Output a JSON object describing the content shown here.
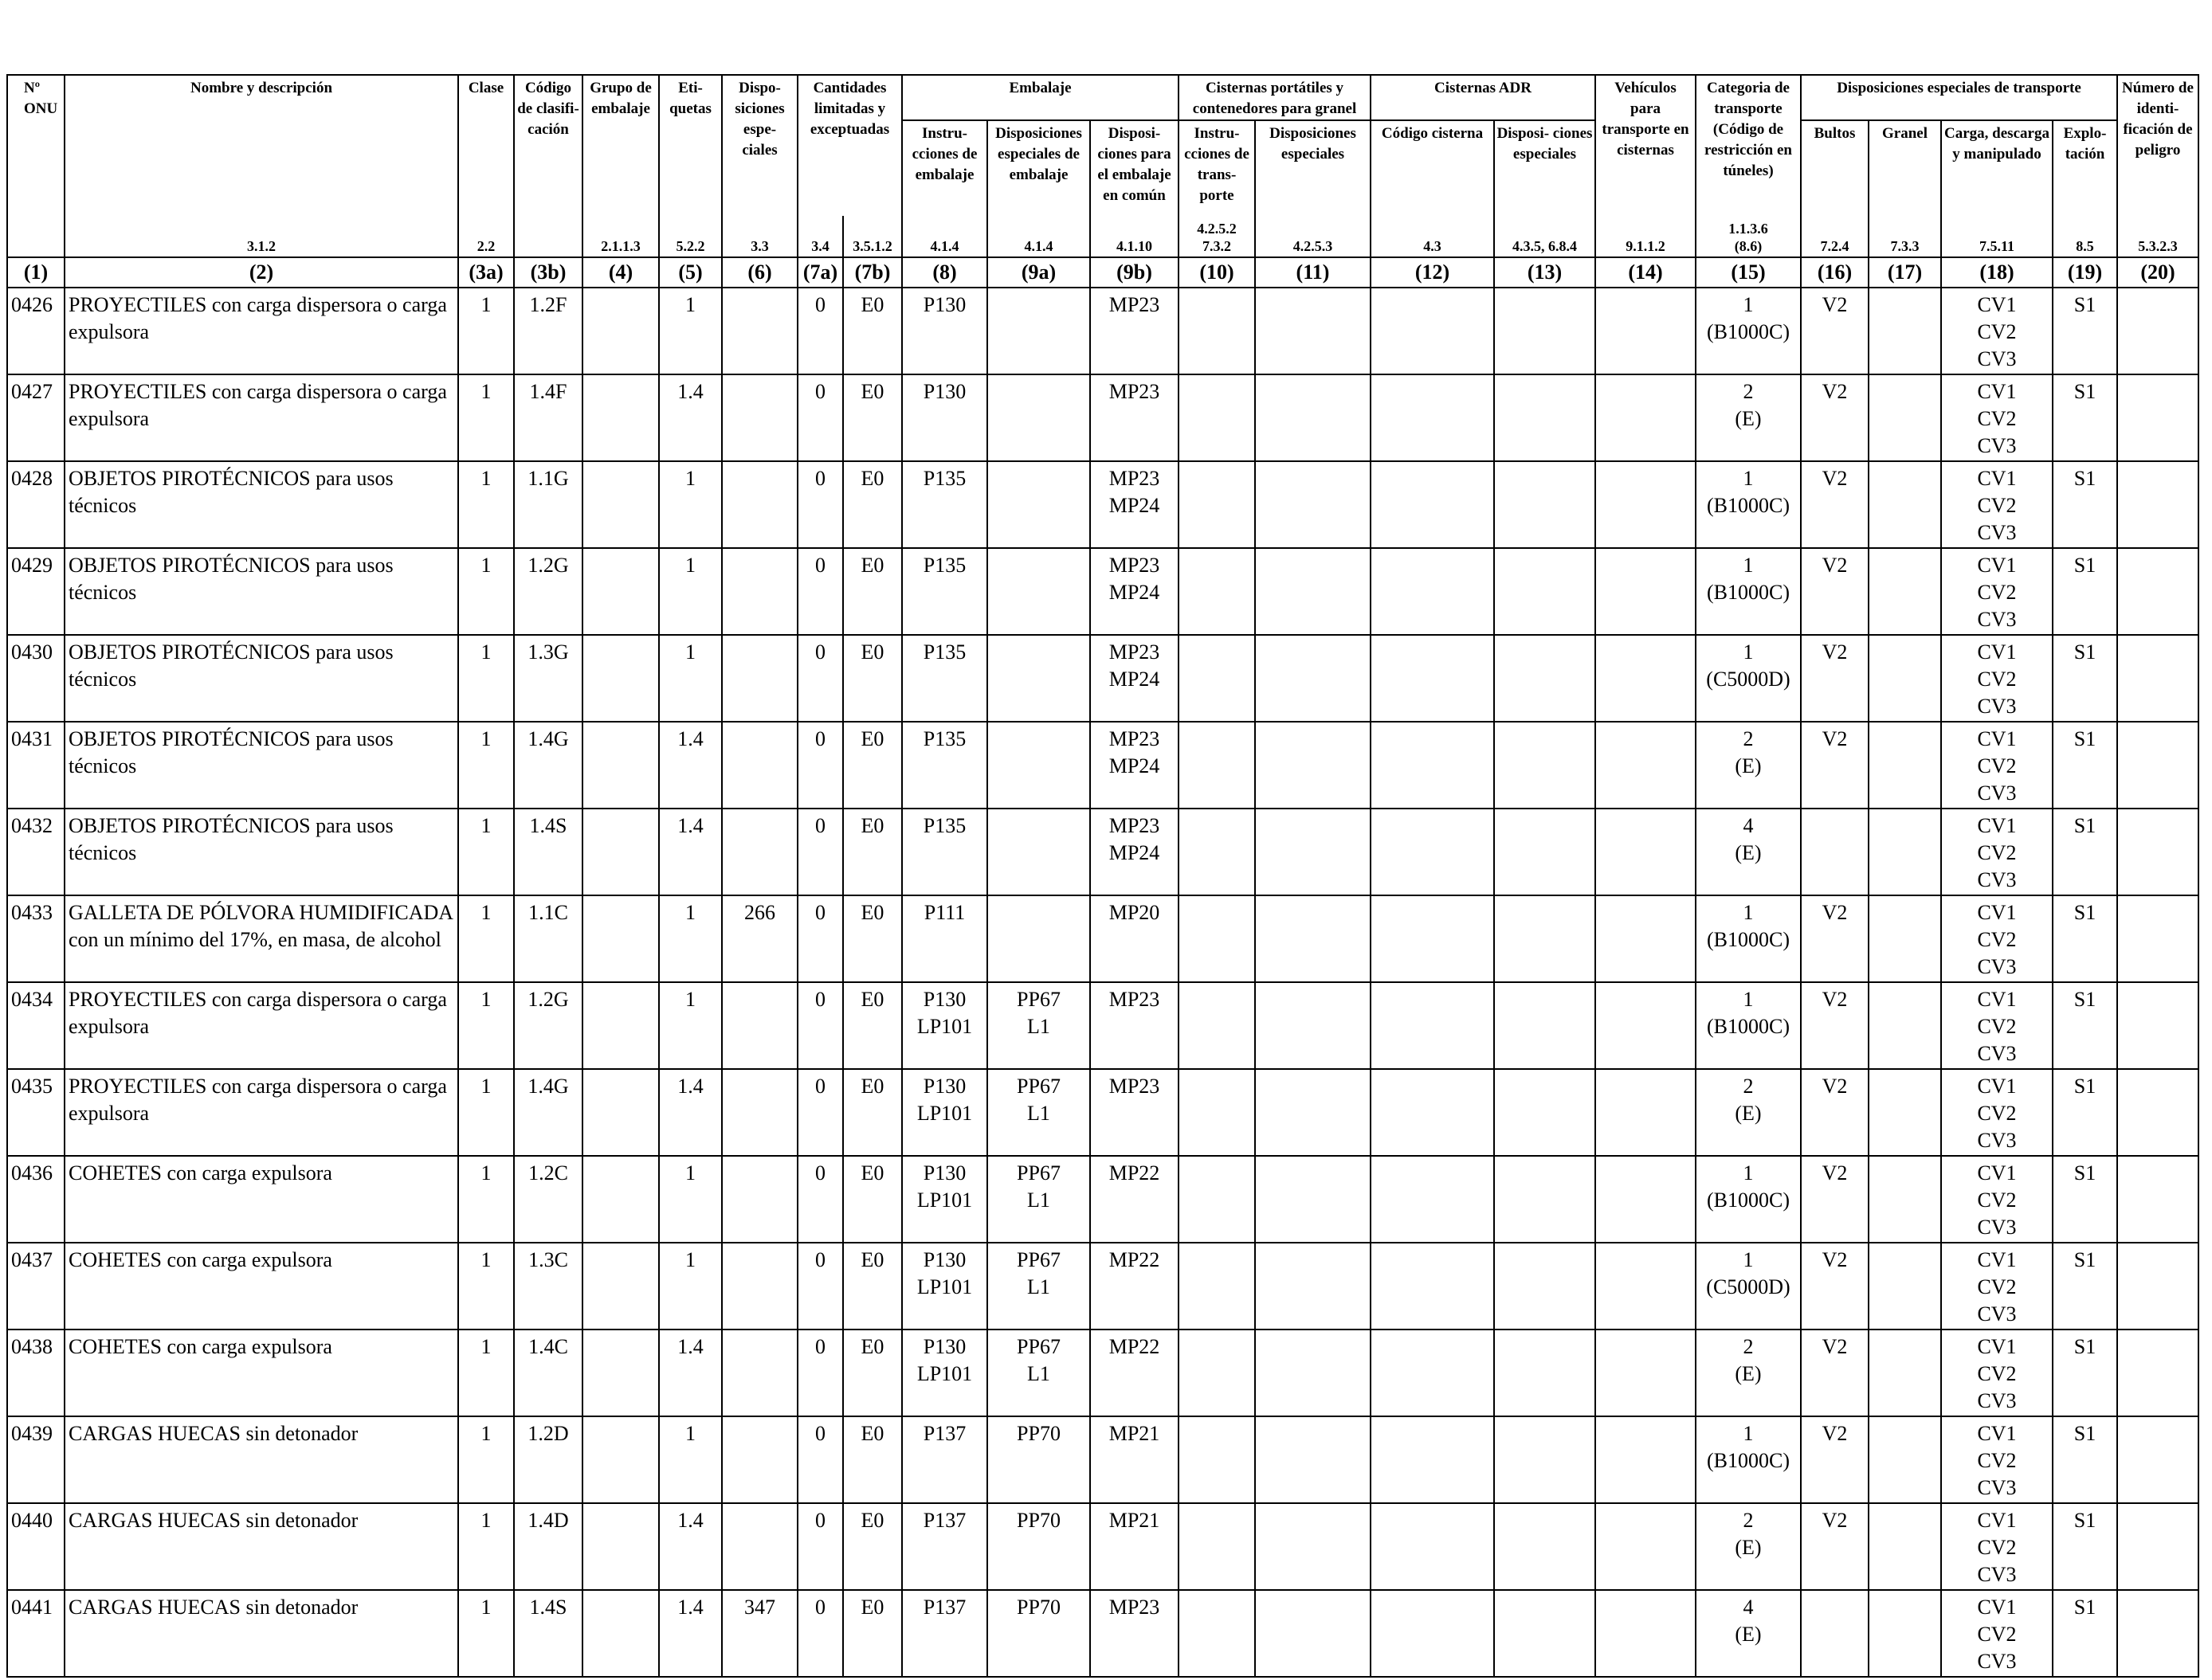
{
  "headers": {
    "onu": "Nº ONU",
    "nombre": "Nombre y descripción",
    "clase": "Clase",
    "codigo": "Código de clasifi- cación",
    "grupo": "Grupo de embalaje",
    "etiquetas": "Eti- quetas",
    "dispos": "Dispo- siciones espe- ciales",
    "cantidades": "Cantidades limitadas y exceptuadas",
    "embalaje": "Embalaje",
    "cisternas_port": "Cisternas portátiles y contenedores para granel",
    "cisternas_adr": "Cisternas ADR",
    "vehiculos": "Vehículos para transporte en cisternas",
    "categoria": "Categoria de transporte (Código de restricción en túneles)",
    "disp_transporte": "Disposiciones especiales de transporte",
    "numero_peligro": "Número de identi- ficación de peligro",
    "instrucciones_emb": "Instru- cciones de embalaje",
    "disp_emb": "Disposiciones especiales de embalaje",
    "disp_comun": "Disposi- ciones para el embalaje en común",
    "instr_transporte": "Instru- cciones de trans- porte",
    "disp_esp_cist": "Disposiciones especiales",
    "codigo_cisterna": "Código cisterna",
    "disp_esp_adr": "Disposi- ciones especiales",
    "bultos": "Bultos",
    "granel": "Granel",
    "carga": "Carga, descarga y manipulado",
    "explotacion": "Explo- tación"
  },
  "refs": {
    "nombre": "3.1.2",
    "clase": "2.2",
    "codigo": "",
    "grupo": "2.1.1.3",
    "etiquetas": "5.2.2",
    "dispos": "3.3",
    "c7a": "3.4",
    "c7b": "3.5.1.2",
    "c8": "4.1.4",
    "c9a": "4.1.4",
    "c9b": "4.1.10",
    "c10": "4.2.5.2\n7.3.2",
    "c11": "4.2.5.3",
    "c12": "4.3",
    "c13": "4.3.5, 6.8.4",
    "c14": "9.1.1.2",
    "c15": "1.1.3.6\n(8.6)",
    "c16": "7.2.4",
    "c17": "7.3.3",
    "c18": "7.5.11",
    "c19": "8.5",
    "c20": "5.3.2.3"
  },
  "col_numbers": [
    "(1)",
    "(2)",
    "(3a)",
    "(3b)",
    "(4)",
    "(5)",
    "(6)",
    "(7a)",
    "(7b)",
    "(8)",
    "(9a)",
    "(9b)",
    "(10)",
    "(11)",
    "(12)",
    "(13)",
    "(14)",
    "(15)",
    "(16)",
    "(17)",
    "(18)",
    "(19)",
    "(20)"
  ],
  "rows": [
    {
      "onu": "0426",
      "name": "PROYECTILES con carga dispersora o carga expulsora",
      "clase": "1",
      "codigo": "1.2F",
      "grupo": "",
      "etiq": "1",
      "disp": "",
      "c7a": "0",
      "c7b": "E0",
      "c8": "P130",
      "c9a": "",
      "c9b": "MP23",
      "c10": "",
      "c11": "",
      "c12": "",
      "c13": "",
      "c14": "",
      "c15": "1\n(B1000C)",
      "c16": "V2",
      "c17": "",
      "c18": "CV1\nCV2\nCV3",
      "c19": "S1",
      "c20": ""
    },
    {
      "onu": "0427",
      "name": "PROYECTILES con carga dispersora o carga expulsora",
      "clase": "1",
      "codigo": "1.4F",
      "grupo": "",
      "etiq": "1.4",
      "disp": "",
      "c7a": "0",
      "c7b": "E0",
      "c8": "P130",
      "c9a": "",
      "c9b": "MP23",
      "c10": "",
      "c11": "",
      "c12": "",
      "c13": "",
      "c14": "",
      "c15": "2\n(E)",
      "c16": "V2",
      "c17": "",
      "c18": "CV1\nCV2\nCV3",
      "c19": "S1",
      "c20": ""
    },
    {
      "onu": "0428",
      "name": "OBJETOS PIROTÉCNICOS para usos técnicos",
      "clase": "1",
      "codigo": "1.1G",
      "grupo": "",
      "etiq": "1",
      "disp": "",
      "c7a": "0",
      "c7b": "E0",
      "c8": "P135",
      "c9a": "",
      "c9b": "MP23\nMP24",
      "c10": "",
      "c11": "",
      "c12": "",
      "c13": "",
      "c14": "",
      "c15": "1\n(B1000C)",
      "c16": "V2",
      "c17": "",
      "c18": "CV1\nCV2\nCV3",
      "c19": "S1",
      "c20": ""
    },
    {
      "onu": "0429",
      "name": "OBJETOS PIROTÉCNICOS para usos técnicos",
      "clase": "1",
      "codigo": "1.2G",
      "grupo": "",
      "etiq": "1",
      "disp": "",
      "c7a": "0",
      "c7b": "E0",
      "c8": "P135",
      "c9a": "",
      "c9b": "MP23\nMP24",
      "c10": "",
      "c11": "",
      "c12": "",
      "c13": "",
      "c14": "",
      "c15": "1\n(B1000C)",
      "c16": "V2",
      "c17": "",
      "c18": "CV1\nCV2\nCV3",
      "c19": "S1",
      "c20": ""
    },
    {
      "onu": "0430",
      "name": "OBJETOS PIROTÉCNICOS para usos técnicos",
      "clase": "1",
      "codigo": "1.3G",
      "grupo": "",
      "etiq": "1",
      "disp": "",
      "c7a": "0",
      "c7b": "E0",
      "c8": "P135",
      "c9a": "",
      "c9b": "MP23\nMP24",
      "c10": "",
      "c11": "",
      "c12": "",
      "c13": "",
      "c14": "",
      "c15": "1\n(C5000D)",
      "c16": "V2",
      "c17": "",
      "c18": "CV1\nCV2\nCV3",
      "c19": "S1",
      "c20": ""
    },
    {
      "onu": "0431",
      "name": "OBJETOS PIROTÉCNICOS para usos técnicos",
      "clase": "1",
      "codigo": "1.4G",
      "grupo": "",
      "etiq": "1.4",
      "disp": "",
      "c7a": "0",
      "c7b": "E0",
      "c8": "P135",
      "c9a": "",
      "c9b": "MP23\nMP24",
      "c10": "",
      "c11": "",
      "c12": "",
      "c13": "",
      "c14": "",
      "c15": "2\n(E)",
      "c16": "V2",
      "c17": "",
      "c18": "CV1\nCV2\nCV3",
      "c19": "S1",
      "c20": ""
    },
    {
      "onu": "0432",
      "name": "OBJETOS PIROTÉCNICOS para usos técnicos",
      "clase": "1",
      "codigo": "1.4S",
      "grupo": "",
      "etiq": "1.4",
      "disp": "",
      "c7a": "0",
      "c7b": "E0",
      "c8": "P135",
      "c9a": "",
      "c9b": "MP23\nMP24",
      "c10": "",
      "c11": "",
      "c12": "",
      "c13": "",
      "c14": "",
      "c15": "4\n(E)",
      "c16": "",
      "c17": "",
      "c18": "CV1\nCV2\nCV3",
      "c19": "S1",
      "c20": ""
    },
    {
      "onu": "0433",
      "name": "GALLETA DE PÓLVORA HUMIDIFICADA con un mínimo del 17%, en masa, de alcohol",
      "clase": "1",
      "codigo": "1.1C",
      "grupo": "",
      "etiq": "1",
      "disp": "266",
      "c7a": "0",
      "c7b": "E0",
      "c8": "P111",
      "c9a": "",
      "c9b": "MP20",
      "c10": "",
      "c11": "",
      "c12": "",
      "c13": "",
      "c14": "",
      "c15": "1\n(B1000C)",
      "c16": "V2",
      "c17": "",
      "c18": "CV1\nCV2\nCV3",
      "c19": "S1",
      "c20": ""
    },
    {
      "onu": "0434",
      "name": "PROYECTILES con carga dispersora o carga expulsora",
      "clase": "1",
      "codigo": "1.2G",
      "grupo": "",
      "etiq": "1",
      "disp": "",
      "c7a": "0",
      "c7b": "E0",
      "c8": "P130\nLP101",
      "c9a": "PP67\nL1",
      "c9b": "MP23",
      "c10": "",
      "c11": "",
      "c12": "",
      "c13": "",
      "c14": "",
      "c15": "1\n(B1000C)",
      "c16": "V2",
      "c17": "",
      "c18": "CV1\nCV2\nCV3",
      "c19": "S1",
      "c20": ""
    },
    {
      "onu": "0435",
      "name": "PROYECTILES con carga dispersora o carga expulsora",
      "clase": "1",
      "codigo": "1.4G",
      "grupo": "",
      "etiq": "1.4",
      "disp": "",
      "c7a": "0",
      "c7b": "E0",
      "c8": "P130\nLP101",
      "c9a": "PP67\nL1",
      "c9b": "MP23",
      "c10": "",
      "c11": "",
      "c12": "",
      "c13": "",
      "c14": "",
      "c15": "2\n(E)",
      "c16": "V2",
      "c17": "",
      "c18": "CV1\nCV2\nCV3",
      "c19": "S1",
      "c20": ""
    },
    {
      "onu": "0436",
      "name": "COHETES con carga expulsora",
      "clase": "1",
      "codigo": "1.2C",
      "grupo": "",
      "etiq": "1",
      "disp": "",
      "c7a": "0",
      "c7b": "E0",
      "c8": "P130\nLP101",
      "c9a": "PP67\nL1",
      "c9b": "MP22",
      "c10": "",
      "c11": "",
      "c12": "",
      "c13": "",
      "c14": "",
      "c15": "1\n(B1000C)",
      "c16": "V2",
      "c17": "",
      "c18": "CV1\nCV2\nCV3",
      "c19": "S1",
      "c20": ""
    },
    {
      "onu": "0437",
      "name": "COHETES con carga expulsora",
      "clase": "1",
      "codigo": "1.3C",
      "grupo": "",
      "etiq": "1",
      "disp": "",
      "c7a": "0",
      "c7b": "E0",
      "c8": "P130\nLP101",
      "c9a": "PP67\nL1",
      "c9b": "MP22",
      "c10": "",
      "c11": "",
      "c12": "",
      "c13": "",
      "c14": "",
      "c15": "1\n(C5000D)",
      "c16": "V2",
      "c17": "",
      "c18": "CV1\nCV2\nCV3",
      "c19": "S1",
      "c20": ""
    },
    {
      "onu": "0438",
      "name": "COHETES con carga expulsora",
      "clase": "1",
      "codigo": "1.4C",
      "grupo": "",
      "etiq": "1.4",
      "disp": "",
      "c7a": "0",
      "c7b": "E0",
      "c8": "P130\nLP101",
      "c9a": "PP67\nL1",
      "c9b": "MP22",
      "c10": "",
      "c11": "",
      "c12": "",
      "c13": "",
      "c14": "",
      "c15": "2\n(E)",
      "c16": "V2",
      "c17": "",
      "c18": "CV1\nCV2\nCV3",
      "c19": "S1",
      "c20": ""
    },
    {
      "onu": "0439",
      "name": "CARGAS HUECAS sin detonador",
      "clase": "1",
      "codigo": "1.2D",
      "grupo": "",
      "etiq": "1",
      "disp": "",
      "c7a": "0",
      "c7b": "E0",
      "c8": "P137",
      "c9a": "PP70",
      "c9b": "MP21",
      "c10": "",
      "c11": "",
      "c12": "",
      "c13": "",
      "c14": "",
      "c15": "1\n(B1000C)",
      "c16": "V2",
      "c17": "",
      "c18": "CV1\nCV2\nCV3",
      "c19": "S1",
      "c20": ""
    },
    {
      "onu": "0440",
      "name": "CARGAS HUECAS sin detonador",
      "clase": "1",
      "codigo": "1.4D",
      "grupo": "",
      "etiq": "1.4",
      "disp": "",
      "c7a": "0",
      "c7b": "E0",
      "c8": "P137",
      "c9a": "PP70",
      "c9b": "MP21",
      "c10": "",
      "c11": "",
      "c12": "",
      "c13": "",
      "c14": "",
      "c15": "2\n(E)",
      "c16": "V2",
      "c17": "",
      "c18": "CV1\nCV2\nCV3",
      "c19": "S1",
      "c20": ""
    },
    {
      "onu": "0441",
      "name": "CARGAS HUECAS sin detonador",
      "clase": "1",
      "codigo": "1.4S",
      "grupo": "",
      "etiq": "1.4",
      "disp": "347",
      "c7a": "0",
      "c7b": "E0",
      "c8": "P137",
      "c9a": "PP70",
      "c9b": "MP23",
      "c10": "",
      "c11": "",
      "c12": "",
      "c13": "",
      "c14": "",
      "c15": "4\n(E)",
      "c16": "",
      "c17": "",
      "c18": "CV1\nCV2\nCV3",
      "c19": "S1",
      "c20": ""
    }
  ]
}
